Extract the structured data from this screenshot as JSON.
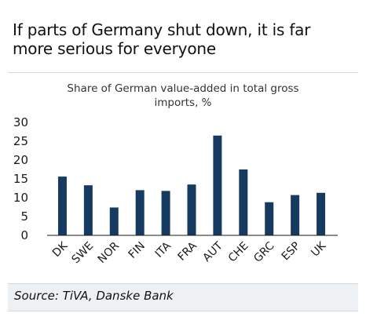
{
  "header": {
    "title_line1": "If parts of Germany shut down, it is far",
    "title_line2": "more serious for everyone"
  },
  "chart_data": {
    "type": "bar",
    "title": "Share of German value-added in total gross imports, %",
    "title_line1": "Share of German value-added in total gross",
    "title_line2": "imports, %",
    "categories": [
      "DK",
      "SWE",
      "NOR",
      "FIN",
      "ITA",
      "FRA",
      "AUT",
      "CHE",
      "GRC",
      "ESP",
      "UK"
    ],
    "values": [
      15.6,
      13.3,
      7.4,
      12.0,
      11.8,
      13.5,
      26.5,
      17.5,
      8.8,
      10.7,
      11.3
    ],
    "ylim": [
      0,
      30
    ],
    "yticks": [
      "0",
      "5",
      "10",
      "15",
      "20",
      "25",
      "30"
    ],
    "grid": false,
    "bar_color": "#173a61"
  },
  "footer": {
    "source": "Source: TiVA, Danske Bank"
  }
}
